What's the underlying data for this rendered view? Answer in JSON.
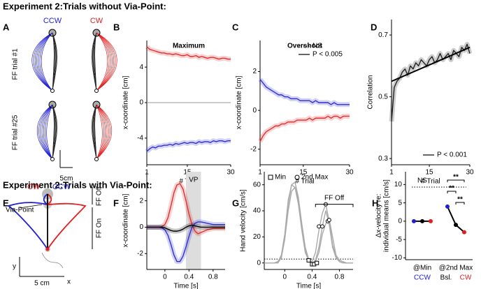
{
  "sections": [
    "Experiment 2:Trials without Via-Point:",
    "Experiment 2:Trials with Via-Point:"
  ],
  "panel_a": {
    "letter": "A",
    "ccw": "CCW",
    "cw": "CW",
    "row1": "FF trial #1",
    "row2": "FF trial #25",
    "scale": "5cm"
  },
  "panel_e": {
    "letter": "E",
    "cw": "CW",
    "ccw": "CCW",
    "via": "Via-Point",
    "ff_off": "FF Off",
    "ff_on": "FF On",
    "y": "y",
    "x": "x",
    "scale": "5 cm"
  },
  "chart_data": [
    {
      "type": "line",
      "panel": "B",
      "title": "Maximum",
      "x_label": "# Trial",
      "y_label": "x-coordinate [cm]",
      "x": [
        1,
        2,
        3,
        4,
        5,
        6,
        7,
        8,
        9,
        10,
        11,
        12,
        13,
        14,
        15,
        16,
        17,
        18,
        19,
        20,
        21,
        22,
        23,
        24,
        25,
        26,
        27,
        28,
        29,
        30
      ],
      "xlim": [
        1,
        30
      ],
      "xticks": [
        1,
        15,
        30
      ],
      "ylim": [
        -7,
        7
      ],
      "yticks": [
        -4,
        0,
        4
      ],
      "zero_line": true,
      "series": [
        {
          "color": "#e03030",
          "values": [
            6.3,
            6.0,
            5.9,
            5.8,
            5.7,
            5.6,
            5.6,
            5.5,
            5.5,
            5.4,
            5.5,
            5.4,
            5.3,
            5.3,
            5.4,
            5.2,
            5.2,
            5.3,
            5.1,
            5.2,
            5.1,
            5.0,
            5.1,
            5.1,
            5.0,
            4.9,
            5.0,
            5.0,
            4.9,
            4.9
          ]
        },
        {
          "color": "#3030d0",
          "values": [
            -5.5,
            -5.2,
            -5.0,
            -5.1,
            -4.9,
            -4.9,
            -4.8,
            -4.8,
            -4.7,
            -4.8,
            -4.6,
            -4.7,
            -4.6,
            -4.5,
            -4.6,
            -4.5,
            -4.5,
            -4.6,
            -4.4,
            -4.5,
            -4.4,
            -4.4,
            -4.5,
            -4.3,
            -4.4,
            -4.3,
            -4.3,
            -4.4,
            -4.3,
            -4.3
          ]
        }
      ]
    },
    {
      "type": "line",
      "panel": "C",
      "title": "Overshoot",
      "x_label": "# Trial",
      "y_label": "x-coordinate [cm]",
      "x": [
        1,
        2,
        3,
        4,
        5,
        6,
        7,
        8,
        9,
        10,
        11,
        12,
        13,
        14,
        15,
        16,
        17,
        18,
        19,
        20,
        21,
        22,
        23,
        24,
        25,
        26,
        27,
        28,
        29,
        30
      ],
      "xlim": [
        1,
        30
      ],
      "xticks": [
        1,
        15,
        30
      ],
      "ylim": [
        -2.8,
        3.6
      ],
      "yticks": [
        -2,
        0,
        2
      ],
      "legend": [
        {
          "label": "NS",
          "style": "dotted"
        },
        {
          "label": "P < 0.005",
          "style": "solid"
        }
      ],
      "series": [
        {
          "color": "#3030d0",
          "values": [
            1.6,
            1.4,
            1.2,
            1.1,
            1.0,
            0.9,
            0.8,
            0.8,
            0.7,
            0.7,
            0.6,
            0.6,
            0.6,
            0.5,
            0.5,
            0.5,
            0.5,
            0.4,
            0.5,
            0.4,
            0.4,
            0.4,
            0.4,
            0.3,
            0.4,
            0.3,
            0.3,
            0.3,
            0.3,
            0.3
          ]
        },
        {
          "color": "#e03030",
          "values": [
            -1.6,
            -1.3,
            -1.1,
            -1.0,
            -0.9,
            -0.8,
            -0.8,
            -0.7,
            -0.7,
            -0.6,
            -0.6,
            -0.6,
            -0.5,
            -0.5,
            -0.5,
            -0.5,
            -0.4,
            -0.5,
            -0.4,
            -0.4,
            -0.4,
            -0.4,
            -0.3,
            -0.4,
            -0.3,
            -0.3,
            -0.4,
            -0.3,
            -0.3,
            -0.3
          ]
        }
      ]
    },
    {
      "type": "line",
      "panel": "D",
      "x_label": "# Trial",
      "y_label": "Correlation",
      "x": [
        1,
        2,
        3,
        4,
        5,
        6,
        7,
        8,
        9,
        10,
        11,
        12,
        13,
        14,
        15,
        16,
        17,
        18,
        19,
        20,
        21,
        22,
        23,
        24,
        25,
        26,
        27,
        28,
        29,
        30
      ],
      "xlim": [
        1,
        30
      ],
      "xticks": [
        1,
        15,
        30
      ],
      "ylim": [
        0.28,
        0.75
      ],
      "yticks": [
        0.3,
        0.5,
        0.7
      ],
      "legend": [
        {
          "label": "P < 0.001",
          "style": "solid"
        }
      ],
      "series": [
        {
          "color": "#222222",
          "values": [
            0.42,
            0.53,
            0.55,
            0.56,
            0.58,
            0.59,
            0.57,
            0.6,
            0.59,
            0.61,
            0.6,
            0.62,
            0.61,
            0.6,
            0.62,
            0.63,
            0.61,
            0.62,
            0.64,
            0.62,
            0.63,
            0.64,
            0.62,
            0.65,
            0.64,
            0.63,
            0.66,
            0.65,
            0.67,
            0.64
          ]
        },
        {
          "color": "#000000",
          "x": [
            1,
            30
          ],
          "values": [
            0.55,
            0.66
          ]
        }
      ]
    },
    {
      "type": "line",
      "panel": "F",
      "x_label": "Time [s]",
      "y_label": "x-coordinate [cm]",
      "x": [
        -0.3,
        -0.25,
        -0.2,
        -0.15,
        -0.1,
        -0.05,
        0,
        0.05,
        0.1,
        0.15,
        0.2,
        0.25,
        0.3,
        0.35,
        0.4,
        0.45,
        0.5,
        0.55,
        0.6,
        0.65,
        0.7,
        0.75,
        0.8,
        0.85,
        0.9,
        0.95,
        1.0
      ],
      "xlim": [
        -0.3,
        1.0
      ],
      "xticks": [
        0,
        0.4,
        0.8
      ],
      "ylim": [
        -3.2,
        4.2
      ],
      "yticks": [
        -2,
        0,
        2
      ],
      "shade": {
        "label": "VP",
        "from": 0.35,
        "to": 0.6
      },
      "series": [
        {
          "color": "#e03030",
          "values": [
            0,
            0,
            0,
            0,
            0,
            0.05,
            0.2,
            0.7,
            1.6,
            2.6,
            3.2,
            3.3,
            2.9,
            2.0,
            1.0,
            0.2,
            -0.3,
            -0.5,
            -0.4,
            -0.3,
            -0.2,
            -0.15,
            -0.1,
            -0.1,
            -0.1,
            -0.1,
            -0.1
          ]
        },
        {
          "color": "#3030d0",
          "values": [
            0,
            0,
            0,
            0,
            0,
            -0.05,
            -0.2,
            -0.6,
            -1.3,
            -2.1,
            -2.6,
            -2.6,
            -2.2,
            -1.5,
            -0.7,
            0,
            0.3,
            0.4,
            0.4,
            0.35,
            0.3,
            0.25,
            0.2,
            0.2,
            0.2,
            0.2,
            0.2
          ]
        },
        {
          "color": "#000000",
          "values": [
            0,
            0,
            0,
            0,
            0,
            0,
            -0.05,
            -0.15,
            -0.25,
            -0.3,
            -0.3,
            -0.25,
            -0.15,
            0,
            0.1,
            0.15,
            0.1,
            0.05,
            0,
            0,
            0,
            0,
            0,
            0,
            0,
            0,
            0
          ]
        }
      ]
    },
    {
      "type": "line",
      "panel": "G",
      "x_label": "Time [s]",
      "y_label": "Hand velocity [cm/s]",
      "x": [
        -0.3,
        -0.25,
        -0.2,
        -0.15,
        -0.1,
        -0.05,
        0,
        0.05,
        0.1,
        0.15,
        0.2,
        0.25,
        0.3,
        0.35,
        0.4,
        0.45,
        0.5,
        0.55,
        0.6,
        0.65,
        0.7,
        0.75,
        0.8,
        0.85,
        0.9,
        0.95,
        1.0
      ],
      "xlim": [
        -0.3,
        1.0
      ],
      "xticks": [
        0,
        0.4,
        0.8
      ],
      "ylim": [
        -5,
        70
      ],
      "yticks": [
        0,
        20,
        40,
        60
      ],
      "hline": 3,
      "legend": [
        {
          "label": "Min",
          "marker": "square"
        },
        {
          "label": "2nd Max",
          "marker": "circle"
        }
      ],
      "bracket": {
        "label": "FF Off",
        "from": 0.45,
        "to": 1.0,
        "y": 45
      },
      "min_points": {
        "x": [
          0.35,
          0.4,
          0.43,
          0.47
        ],
        "y": [
          2,
          -1,
          -1,
          0
        ]
      },
      "max2_points": {
        "x": [
          0.5,
          0.55,
          0.6,
          0.63,
          0.65
        ],
        "y": [
          28,
          28,
          45,
          32,
          33
        ]
      },
      "series": [
        {
          "color": "#aaaaaa",
          "values": [
            0,
            0,
            0,
            0,
            1,
            5,
            20,
            45,
            60,
            62,
            50,
            30,
            12,
            3,
            0,
            2,
            12,
            28,
            40,
            30,
            12,
            4,
            1,
            0,
            0,
            0,
            0
          ]
        },
        {
          "color": "#aaaaaa",
          "values": [
            0,
            0,
            0,
            0,
            1,
            6,
            22,
            48,
            60,
            58,
            45,
            25,
            8,
            2,
            1,
            8,
            25,
            38,
            45,
            32,
            14,
            5,
            2,
            1,
            0,
            0,
            0
          ]
        },
        {
          "color": "#aaaaaa",
          "values": [
            0,
            0,
            0,
            0,
            0,
            4,
            18,
            40,
            55,
            58,
            48,
            28,
            10,
            2,
            0,
            1,
            8,
            22,
            30,
            34,
            20,
            6,
            2,
            1,
            0,
            0,
            0
          ]
        }
      ]
    },
    {
      "type": "dot",
      "panel": "H",
      "categories": [
        "@Min",
        "@2nd Max"
      ],
      "y_label": [
        "Δx-velocity re:",
        "individual means [cm/s]"
      ],
      "ylim": [
        -10.5,
        13.5
      ],
      "yticks": [
        -10,
        -5,
        0,
        5,
        10
      ],
      "ns": "NS",
      "sig": [
        "**",
        "**",
        "**"
      ],
      "series": [
        {
          "name": "CCW",
          "color": "#2020d0",
          "values": [
            0,
            4
          ]
        },
        {
          "name": "Bsl.",
          "color": "#000000",
          "values": [
            0,
            -1
          ]
        },
        {
          "name": "CW",
          "color": "#e02020",
          "values": [
            0,
            -3
          ]
        }
      ]
    }
  ]
}
